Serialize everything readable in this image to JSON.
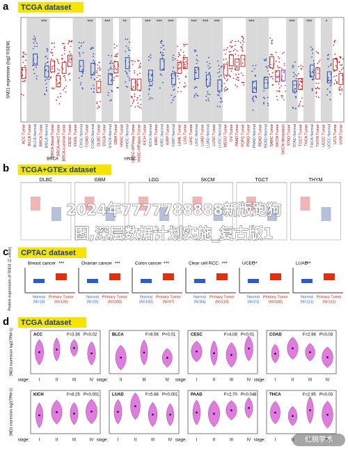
{
  "overlay_title": [
    "2024年7777788888新版跑狗",
    "图,深层数据计划实施_复古版1"
  ],
  "watermark": "仙桃学术",
  "panel_a": {
    "letter": "a",
    "badge": "TCGA dataset",
    "y_label": "SND1 expression (log2 RSEM)",
    "columns": [
      {
        "label": "ACC Tumor",
        "sig": null
      },
      {
        "label": "BLCA Tumor",
        "sig": null
      },
      {
        "label": "BLCA Normal",
        "sig": null
      },
      {
        "label": "BRCA Tumor",
        "sig": null
      },
      {
        "label": "BRCA Normal",
        "sig": "***"
      },
      {
        "label": "BRCA-Basal Tumor",
        "sig": null
      },
      {
        "label": "BRCA-Her2 Tumor",
        "sig": null
      },
      {
        "label": "BRCA-Luminal Tumor",
        "sig": null
      },
      {
        "label": "CESC Tumor",
        "sig": null
      },
      {
        "label": "CHOL Tumor",
        "sig": null
      },
      {
        "label": "CHOL Normal",
        "sig": null
      },
      {
        "label": "COAD Tumor",
        "sig": null
      },
      {
        "label": "COAD Normal",
        "sig": "***"
      },
      {
        "label": "DLBC Tumor",
        "sig": null
      },
      {
        "label": "ESCA Tumor",
        "sig": null
      },
      {
        "label": "ESCA Normal",
        "sig": "***"
      },
      {
        "label": "GBM Tumor",
        "sig": null
      },
      {
        "label": "HNSC Tumor",
        "sig": null
      },
      {
        "label": "HNSC Normal",
        "sig": "**"
      },
      {
        "label": "HNSC-HPVneg Tumor",
        "sig": null
      },
      {
        "label": "HNSC-HPVpos Tumor",
        "sig": null
      },
      {
        "label": "KICH Tumor",
        "sig": null
      },
      {
        "label": "KICH Normal",
        "sig": "***"
      },
      {
        "label": "KIRC Tumor",
        "sig": null
      },
      {
        "label": "KIRC Normal",
        "sig": "***"
      },
      {
        "label": "KIRP Tumor",
        "sig": null
      },
      {
        "label": "KIRP Normal",
        "sig": "***"
      },
      {
        "label": "LAML Tumor",
        "sig": null
      },
      {
        "label": "LGG Tumor",
        "sig": null
      },
      {
        "label": "LIHC Tumor",
        "sig": null
      },
      {
        "label": "LIHC Normal",
        "sig": "***"
      },
      {
        "label": "LUAD Tumor",
        "sig": null
      },
      {
        "label": "LUAD Normal",
        "sig": "***"
      },
      {
        "label": "LUSC Tumor",
        "sig": null
      },
      {
        "label": "LUSC Normal",
        "sig": "***"
      },
      {
        "label": "MESO Tumor",
        "sig": null
      },
      {
        "label": "OV Tumor",
        "sig": null
      },
      {
        "label": "PAAD Tumor",
        "sig": null
      },
      {
        "label": "PCPG Tumor",
        "sig": null
      },
      {
        "label": "PRAD Tumor",
        "sig": null
      },
      {
        "label": "PRAD Normal",
        "sig": "***"
      },
      {
        "label": "READ Tumor",
        "sig": null
      },
      {
        "label": "READ Normal",
        "sig": null
      },
      {
        "label": "SARC Tumor",
        "sig": null
      },
      {
        "label": "SKCM Tumor",
        "sig": null
      },
      {
        "label": "SKCM Metastasis",
        "sig": null
      },
      {
        "label": "STAD Tumor",
        "sig": null
      },
      {
        "label": "STAD Normal",
        "sig": "***"
      },
      {
        "label": "TGCT Tumor",
        "sig": null
      },
      {
        "label": "THCA Tumor",
        "sig": null
      },
      {
        "label": "THCA Normal",
        "sig": "***"
      },
      {
        "label": "THYM Tumor",
        "sig": null
      },
      {
        "label": "UCEC Tumor",
        "sig": null
      },
      {
        "label": "UCEC Normal",
        "sig": "*"
      },
      {
        "label": "UCS Tumor",
        "sig": null
      },
      {
        "label": "UVM Tumor",
        "sig": null
      }
    ],
    "groups": [
      "BRCA",
      "HNSC"
    ]
  },
  "panel_b": {
    "letter": "b",
    "badge": "TCGA+GTEx dataset",
    "plots": [
      "DLBC",
      "GBM",
      "LGG",
      "SKCM",
      "TGCT",
      "THYM"
    ]
  },
  "panel_c": {
    "letter": "c",
    "badge": "CPTAC dataset",
    "y_label": "Protein expression of SND1 (Z-value)",
    "plots": [
      {
        "title": "Breast cancer",
        "sig": "***",
        "normal": "Normal",
        "normal_n": "(N=18)",
        "tumor": "Primary Tumor",
        "tumor_n": "(N=125)"
      },
      {
        "title": "Ovarian cancer",
        "sig": "***",
        "normal": "Normal",
        "normal_n": "(N=25)",
        "tumor": "Primary Tumor",
        "tumor_n": "(N=100)"
      },
      {
        "title": "Colon cancer",
        "sig": "***",
        "normal": "Normal",
        "normal_n": "(N=100)",
        "tumor": "Primary Tumor",
        "tumor_n": "(N=97)"
      },
      {
        "title": "Clear cell RCC",
        "sig": "***",
        "normal": "Normal",
        "normal_n": "(N=84)",
        "tumor": "Primary Tumor",
        "tumor_n": "(N=110)"
      },
      {
        "title": "UCEC",
        "sig": "***",
        "normal": "Normal",
        "normal_n": "(N=31)",
        "tumor": "Primary Tumor",
        "tumor_n": "(N=100)"
      },
      {
        "title": "LUAD",
        "sig": "***",
        "normal": "Normal",
        "normal_n": "(N=111)",
        "tumor": "Primary Tumor",
        "tumor_n": "(N=111)"
      }
    ]
  },
  "panel_d": {
    "letter": "d",
    "badge": "TCGA dataset",
    "y_label": "SND1 expression log2(TPM+1)",
    "stage_label": "stage:",
    "plots": [
      {
        "name": "ACC",
        "stat": "F=3.36",
        "p": "P=0.02",
        "stages": [
          "I",
          "II",
          "III",
          "IV"
        ]
      },
      {
        "name": "BLCA",
        "stat": "F=6.56",
        "p": "P<0.01",
        "stages": [
          "II",
          "III",
          "IV"
        ]
      },
      {
        "name": "CESC",
        "stat": "F=4.08",
        "p": "P=0.01",
        "stages": [
          "I",
          "II",
          "III",
          "IV"
        ]
      },
      {
        "name": "COAD",
        "stat": "F=2.98",
        "p": "P=0.03",
        "stages": [
          "I",
          "II",
          "III",
          "IV"
        ]
      },
      {
        "name": "KICH",
        "stat": "F=8.25",
        "p": "P<0.001",
        "stages": [
          "I",
          "II",
          "III",
          "IV"
        ]
      },
      {
        "name": "LUAD",
        "stat": "F=5.88",
        "p": "P<0.001",
        "stages": [
          "I",
          "II",
          "III",
          "IV"
        ]
      },
      {
        "name": "PAAD",
        "stat": "F=2.70",
        "p": "P=0.048",
        "stages": [
          "I",
          "II",
          "III",
          "IV"
        ]
      },
      {
        "name": "THCA",
        "stat": "F=2.95",
        "p": "P=0.03",
        "stages": [
          "I",
          "II",
          "III",
          "IV"
        ]
      }
    ]
  }
}
